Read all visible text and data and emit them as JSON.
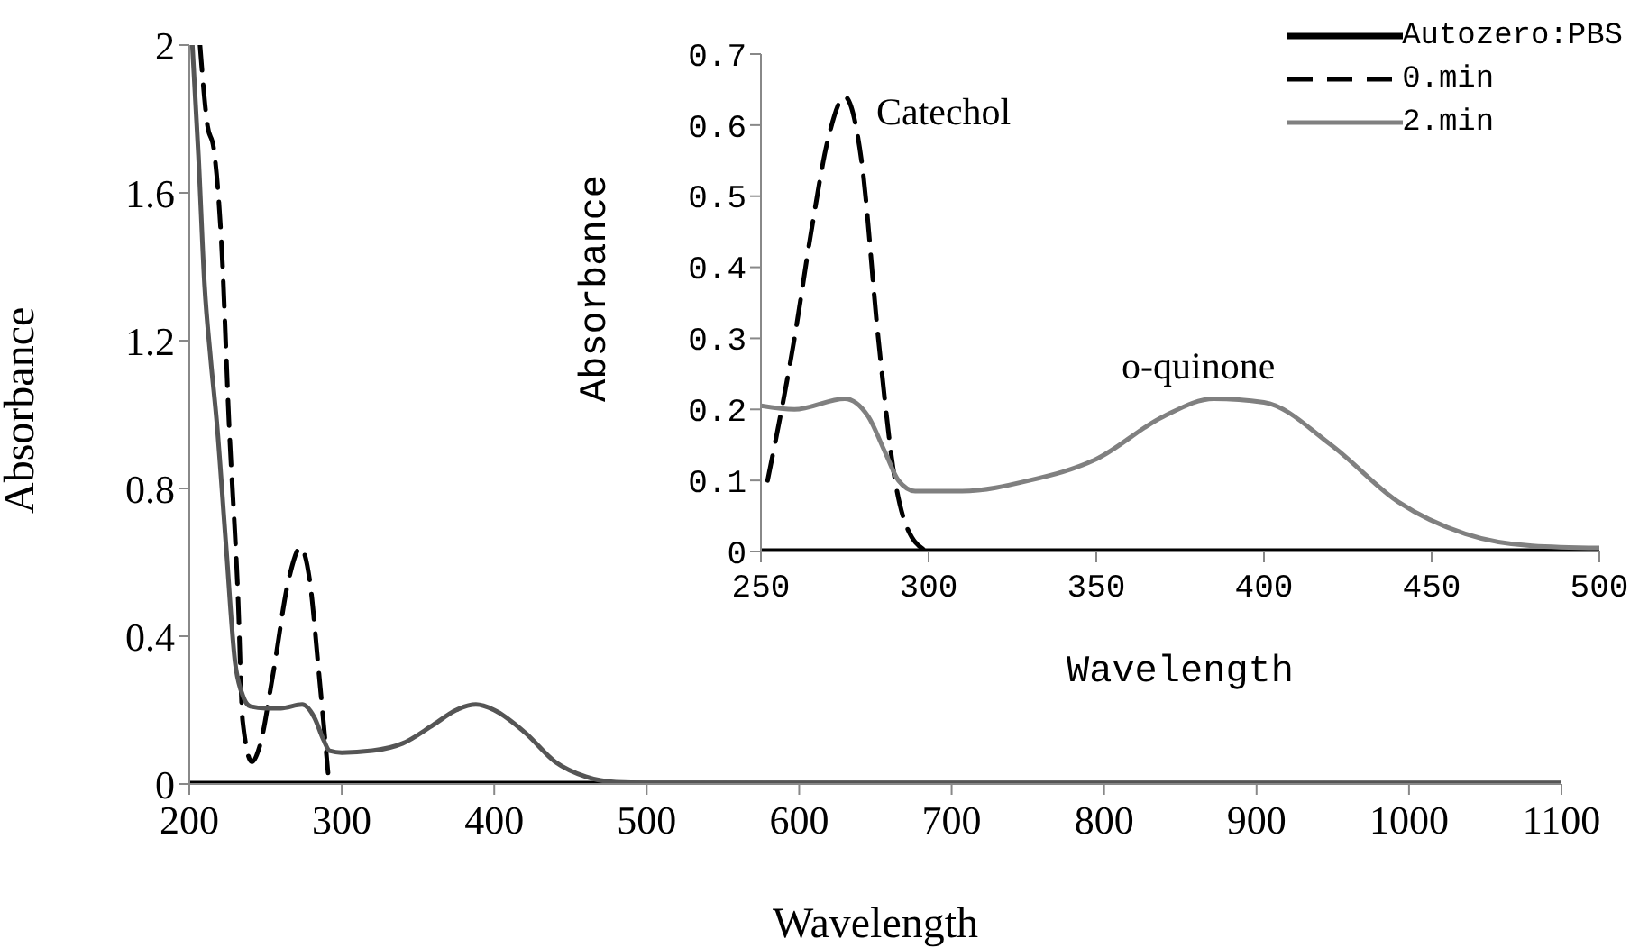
{
  "chart_data": [
    {
      "type": "line",
      "xlabel": "Wavelength",
      "ylabel": "Absorbance",
      "xlim": [
        200,
        1100
      ],
      "xticks": [
        200,
        300,
        400,
        500,
        600,
        700,
        800,
        900,
        1000,
        1100
      ],
      "ylim": [
        0,
        2
      ],
      "yticks": [
        0,
        0.4,
        0.8,
        1.2,
        1.6,
        2
      ],
      "grid": false,
      "legend": false,
      "marker": "none",
      "series": [
        {
          "color": "#000000",
          "line_style": "solid",
          "x": [
            200,
            1100
          ],
          "values": [
            0,
            0
          ]
        },
        {
          "color": "#000000",
          "line_style": "dashed",
          "x": [
            207,
            212,
            216,
            221,
            226,
            232,
            235,
            241,
            246,
            255,
            265,
            273,
            279,
            285,
            291
          ],
          "values": [
            2.0,
            1.78,
            1.72,
            1.47,
            0.98,
            0.5,
            0.17,
            0.06,
            0.1,
            0.3,
            0.55,
            0.64,
            0.55,
            0.3,
            0.03
          ]
        },
        {
          "color": "#555555",
          "line_style": "solid",
          "x": [
            202,
            206,
            210,
            214,
            218,
            224,
            230,
            235,
            240,
            250,
            260,
            274,
            282,
            288,
            292,
            300,
            320,
            340,
            360,
            375,
            388,
            400,
            420,
            440,
            460,
            480,
            500,
            1100
          ],
          "values": [
            2.0,
            1.7,
            1.35,
            1.15,
            0.98,
            0.65,
            0.33,
            0.24,
            0.21,
            0.205,
            0.205,
            0.215,
            0.18,
            0.12,
            0.09,
            0.085,
            0.09,
            0.11,
            0.16,
            0.2,
            0.215,
            0.2,
            0.14,
            0.06,
            0.02,
            0.005,
            0.003,
            0.002
          ]
        }
      ]
    },
    {
      "type": "line",
      "xlabel": "Wavelength",
      "ylabel": "Absorbance",
      "xlim": [
        250,
        500
      ],
      "xticks": [
        250,
        300,
        350,
        400,
        450,
        500
      ],
      "ylim": [
        0,
        0.7
      ],
      "yticks": [
        0,
        0.1,
        0.2,
        0.3,
        0.4,
        0.5,
        0.6,
        0.7
      ],
      "grid": false,
      "legend": "top right",
      "marker": "none",
      "annotations": [
        "Catechol",
        "o-quinone"
      ],
      "series": [
        {
          "name": "Autozero:PBS",
          "color": "#000000",
          "line_style": "solid",
          "x": [
            250,
            500
          ],
          "values": [
            0,
            0
          ]
        },
        {
          "name": "0.min",
          "color": "#000000",
          "line_style": "dashed",
          "x": [
            252,
            260,
            265,
            270,
            275,
            280,
            285,
            290,
            295,
            300
          ],
          "values": [
            0.1,
            0.3,
            0.45,
            0.58,
            0.64,
            0.55,
            0.3,
            0.1,
            0.02,
            0
          ]
        },
        {
          "name": "2.min",
          "color": "#808080",
          "line_style": "solid",
          "x": [
            250,
            260,
            275,
            282,
            287,
            291,
            296,
            310,
            330,
            350,
            370,
            385,
            400,
            420,
            440,
            460,
            480,
            500
          ],
          "values": [
            0.205,
            0.2,
            0.215,
            0.19,
            0.14,
            0.1,
            0.085,
            0.085,
            0.1,
            0.13,
            0.19,
            0.215,
            0.21,
            0.15,
            0.07,
            0.025,
            0.008,
            0.005
          ]
        }
      ]
    }
  ]
}
